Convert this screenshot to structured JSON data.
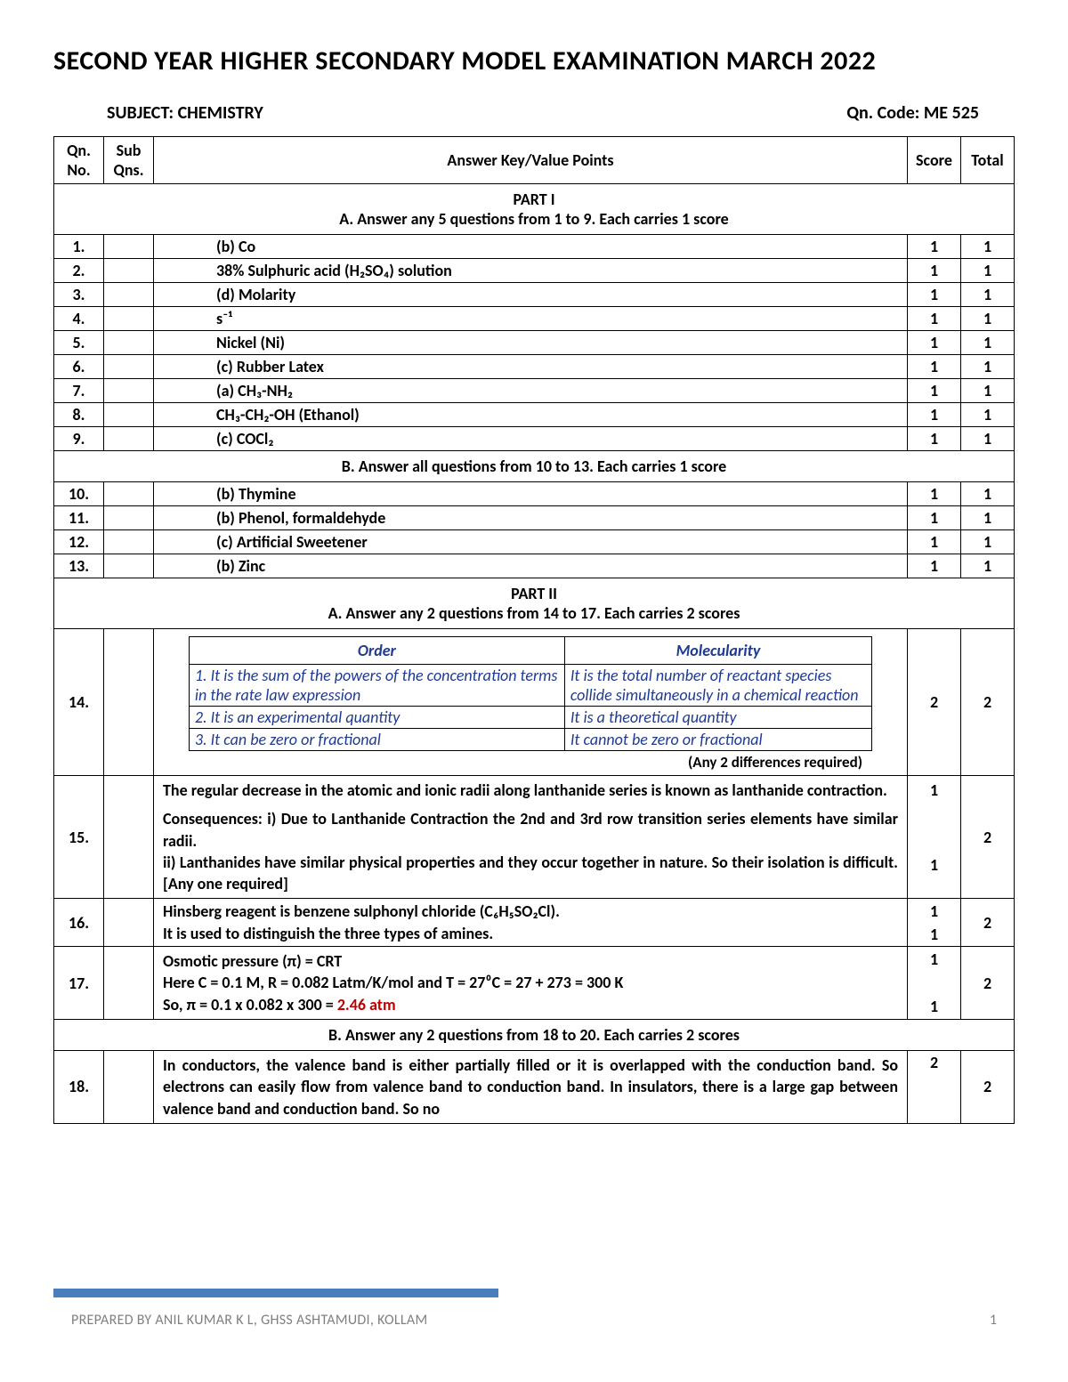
{
  "title": "SECOND YEAR HIGHER SECONDARY MODEL EXAMINATION MARCH 2022",
  "subject_label": "SUBJECT: CHEMISTRY",
  "code_label": "Qn. Code: ME 525",
  "headers": {
    "qn": "Qn. No.",
    "sub": "Sub Qns.",
    "ans": "Answer Key/Value Points",
    "score": "Score",
    "total": "Total"
  },
  "sections": {
    "part1": {
      "part": "PART I",
      "instr": "A.   Answer any 5 questions from 1 to 9. Each carries 1 score"
    },
    "part1b": {
      "instr": "B.   Answer all questions from 10 to 13. Each carries 1 score"
    },
    "part2": {
      "part": "PART II",
      "instr": "A.   Answer any 2 questions from 14 to 17. Each carries 2 scores"
    },
    "part2b": {
      "instr": "B.   Answer any 2 questions from 18 to 20. Each carries 2 scores"
    }
  },
  "rows_a": [
    {
      "qn": "1.",
      "ans": "(b) Co",
      "score": "1",
      "total": "1"
    },
    {
      "qn": "2.",
      "ans": "38% Sulphuric acid (H₂SO₄) solution",
      "score": "1",
      "total": "1"
    },
    {
      "qn": "3.",
      "ans": "(d) Molarity",
      "score": "1",
      "total": "1"
    },
    {
      "qn": "4.",
      "ans": "s⁻¹",
      "score": "1",
      "total": "1"
    },
    {
      "qn": "5.",
      "ans": "Nickel (Ni)",
      "score": "1",
      "total": "1"
    },
    {
      "qn": "6.",
      "ans": "(c) Rubber Latex",
      "score": "1",
      "total": "1"
    },
    {
      "qn": "7.",
      "ans": "(a)  CH₃-NH₂",
      "score": "1",
      "total": "1"
    },
    {
      "qn": "8.",
      "ans": "CH₃-CH₂-OH (Ethanol)",
      "score": "1",
      "total": "1"
    },
    {
      "qn": "9.",
      "ans": "(c)  COCl₂",
      "score": "1",
      "total": "1"
    }
  ],
  "rows_b": [
    {
      "qn": "10.",
      "ans": "(b)  Thymine",
      "score": "1",
      "total": "1"
    },
    {
      "qn": "11.",
      "ans": "(b)  Phenol, formaldehyde",
      "score": "1",
      "total": "1"
    },
    {
      "qn": "12.",
      "ans": "(c)   Artificial Sweetener",
      "score": "1",
      "total": "1"
    },
    {
      "qn": "13.",
      "ans": "(b)  Zinc",
      "score": "1",
      "total": "1"
    }
  ],
  "q14": {
    "qn": "14.",
    "score": "2",
    "total": "2",
    "table": {
      "h1": "Order",
      "h2": "Molecularity",
      "rows": [
        [
          "1.  It is the sum of the powers of the concentration terms in the rate law expression",
          "It is the total number of reactant species collide simultaneously in a chemical reaction"
        ],
        [
          "2.  It is an experimental quantity",
          "It is a theoretical quantity"
        ],
        [
          "3.  It can be zero or fractional",
          "It cannot be zero or fractional"
        ]
      ]
    },
    "note": "(Any 2 differences required)"
  },
  "q15": {
    "qn": "15.",
    "line1": "The regular decrease in the atomic and ionic radii along lanthanide series is known as lanthanide contraction.",
    "s1": "1",
    "line2a": "Consequences: i) Due to Lanthanide Contraction the 2nd and 3rd row transition series elements have similar radii.",
    "line2b": "ii) Lanthanides have similar physical properties and they occur together in nature. So their isolation is difficult. [Any one required]",
    "s2": "1",
    "total": "2"
  },
  "q16": {
    "qn": "16.",
    "line1": "Hinsberg reagent is benzene sulphonyl chloride (C₆H₅SO₂Cl).",
    "s1": "1",
    "line2": "It is used to distinguish the three types of amines.",
    "s2": "1",
    "total": "2"
  },
  "q17": {
    "qn": "17.",
    "line1": "Osmotic pressure (π) = CRT",
    "s1": "1",
    "line2": "Here C = 0.1 M, R = 0.082 Latm/K/mol and T = 27⁰C = 27 + 273 = 300 K",
    "line3a": "So, π = 0.1 x 0.082 x 300 = ",
    "line3b": "2.46 atm",
    "s3": "1",
    "total": "2"
  },
  "q18": {
    "qn": "18.",
    "text": "In conductors, the valence band is either partially filled or it is overlapped with the conduction band. So electrons can easily flow from valence band to conduction band. In insulators, there is a large gap between valence band and conduction band. So no",
    "score": "2",
    "total": "2"
  },
  "footer": {
    "text": "PREPARED BY ANIL KUMAR K L, GHSS ASHTAMUDI, KOLLAM",
    "page": "1"
  },
  "colors": {
    "accent": "#4a7ebb",
    "highlight": "#c00000",
    "inner_text": "#1f3a93",
    "footer_text": "#808080",
    "background": "#ffffff"
  }
}
